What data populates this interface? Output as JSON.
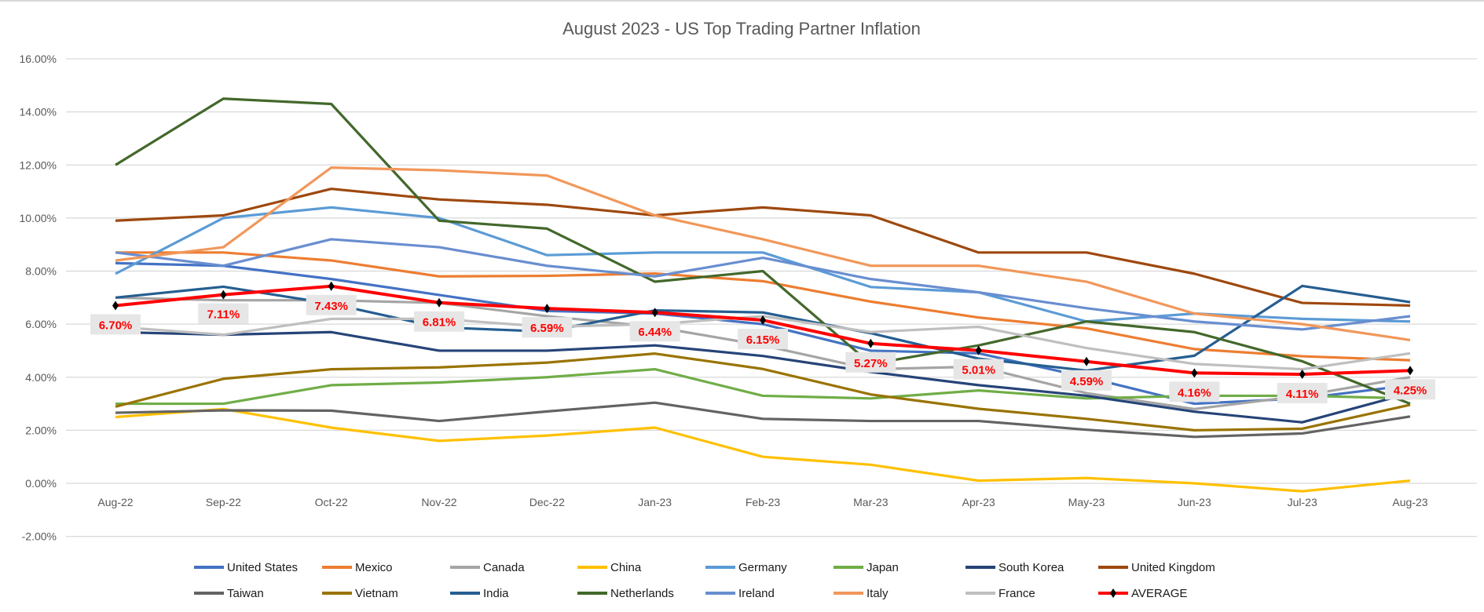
{
  "chart_data": {
    "type": "line",
    "title": "August 2023 - US Top Trading Partner Inflation",
    "categories": [
      "Aug-22",
      "Sep-22",
      "Oct-22",
      "Nov-22",
      "Dec-22",
      "Jan-23",
      "Feb-23",
      "Mar-23",
      "Apr-23",
      "May-23",
      "Jun-23",
      "Jul-23",
      "Aug-23"
    ],
    "ylim": [
      -2,
      16
    ],
    "yticks": [
      "-2.00%",
      "0.00%",
      "2.00%",
      "4.00%",
      "6.00%",
      "8.00%",
      "10.00%",
      "12.00%",
      "14.00%",
      "16.00%"
    ],
    "ytick_values": [
      -2,
      0,
      2,
      4,
      6,
      8,
      10,
      12,
      14,
      16
    ],
    "grid": true,
    "legend_placement": "bottom",
    "series": [
      {
        "name": "United States",
        "color": "#4472C4",
        "values": [
          8.3,
          8.2,
          7.7,
          7.1,
          6.5,
          6.4,
          6.0,
          5.0,
          4.9,
          4.0,
          3.0,
          3.2,
          3.7
        ]
      },
      {
        "name": "Mexico",
        "color": "#ED7D31",
        "values": [
          8.7,
          8.7,
          8.4,
          7.8,
          7.82,
          7.91,
          7.62,
          6.85,
          6.25,
          5.84,
          5.06,
          4.79,
          4.64
        ]
      },
      {
        "name": "Canada",
        "color": "#A5A5A5",
        "values": [
          7.0,
          6.9,
          6.9,
          6.8,
          6.3,
          5.9,
          5.2,
          4.3,
          4.4,
          3.4,
          2.8,
          3.3,
          4.0
        ]
      },
      {
        "name": "China",
        "color": "#FFC000",
        "values": [
          2.5,
          2.8,
          2.1,
          1.6,
          1.8,
          2.1,
          1.0,
          0.7,
          0.1,
          0.2,
          0.0,
          -0.3,
          0.1
        ]
      },
      {
        "name": "Germany",
        "color": "#5B9BD5",
        "values": [
          7.9,
          10.0,
          10.4,
          10.0,
          8.6,
          8.7,
          8.7,
          7.4,
          7.2,
          6.1,
          6.4,
          6.2,
          6.1
        ]
      },
      {
        "name": "Japan",
        "color": "#70AD47",
        "values": [
          3.0,
          3.0,
          3.7,
          3.8,
          4.0,
          4.3,
          3.3,
          3.2,
          3.5,
          3.2,
          3.3,
          3.3,
          3.2
        ]
      },
      {
        "name": "South Korea",
        "color": "#264478",
        "values": [
          5.7,
          5.6,
          5.7,
          5.0,
          5.0,
          5.2,
          4.8,
          4.2,
          3.7,
          3.3,
          2.7,
          2.3,
          3.4
        ]
      },
      {
        "name": "United Kingdom",
        "color": "#9E480E",
        "values": [
          9.9,
          10.1,
          11.1,
          10.7,
          10.5,
          10.1,
          10.4,
          10.1,
          8.7,
          8.7,
          7.9,
          6.8,
          6.7
        ]
      },
      {
        "name": "Taiwan",
        "color": "#636363",
        "values": [
          2.66,
          2.75,
          2.74,
          2.35,
          2.71,
          3.04,
          2.43,
          2.35,
          2.35,
          2.02,
          1.75,
          1.88,
          2.52
        ]
      },
      {
        "name": "Vietnam",
        "color": "#997300",
        "values": [
          2.89,
          3.94,
          4.3,
          4.37,
          4.55,
          4.89,
          4.31,
          3.35,
          2.81,
          2.43,
          2.0,
          2.06,
          2.96
        ]
      },
      {
        "name": "India",
        "color": "#255E91",
        "values": [
          7.0,
          7.41,
          6.77,
          5.88,
          5.72,
          6.52,
          6.44,
          5.66,
          4.7,
          4.25,
          4.81,
          7.44,
          6.83
        ]
      },
      {
        "name": "Netherlands",
        "color": "#43682B",
        "values": [
          12.0,
          14.5,
          14.3,
          9.9,
          9.6,
          7.6,
          8.0,
          4.5,
          5.2,
          6.1,
          5.7,
          4.6,
          3.0
        ]
      },
      {
        "name": "Ireland",
        "color": "#698ED0",
        "values": [
          8.7,
          8.2,
          9.2,
          8.9,
          8.2,
          7.8,
          8.5,
          7.7,
          7.2,
          6.6,
          6.1,
          5.8,
          6.3
        ]
      },
      {
        "name": "Italy",
        "color": "#F1975A",
        "values": [
          8.4,
          8.9,
          11.9,
          11.8,
          11.6,
          10.1,
          9.2,
          8.2,
          8.2,
          7.6,
          6.4,
          6.0,
          5.4
        ]
      },
      {
        "name": "France",
        "color": "#BFBFBF",
        "values": [
          5.9,
          5.6,
          6.2,
          6.2,
          5.9,
          6.0,
          6.3,
          5.7,
          5.9,
          5.1,
          4.5,
          4.3,
          4.9
        ]
      },
      {
        "name": "AVERAGE",
        "color": "#FF0000",
        "marker": "diamond",
        "values": [
          6.7,
          7.11,
          7.43,
          6.81,
          6.59,
          6.44,
          6.15,
          5.27,
          5.01,
          4.59,
          4.16,
          4.11,
          4.25
        ],
        "data_labels": [
          "6.70%",
          "7.11%",
          "7.43%",
          "6.81%",
          "6.59%",
          "6.44%",
          "6.15%",
          "5.27%",
          "5.01%",
          "4.59%",
          "4.16%",
          "4.11%",
          "4.25%"
        ]
      }
    ]
  }
}
